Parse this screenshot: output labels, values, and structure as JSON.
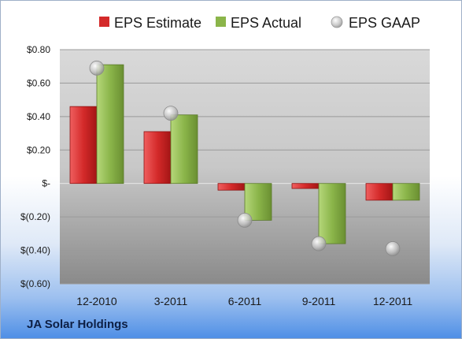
{
  "company": "JA Solar Holdings",
  "colors": {
    "estimate": "#d42a2a",
    "actual": "#8bb54a",
    "gaap": "#b8b8b8"
  },
  "chart_data": {
    "type": "bar",
    "categories": [
      "12-2010",
      "3-2011",
      "6-2011",
      "9-2011",
      "12-2011"
    ],
    "series": [
      {
        "name": "EPS Estimate",
        "values": [
          0.46,
          0.31,
          -0.04,
          -0.03,
          -0.1
        ]
      },
      {
        "name": "EPS Actual",
        "values": [
          0.71,
          0.41,
          -0.22,
          -0.36,
          -0.1
        ]
      },
      {
        "name": "EPS GAAP",
        "type": "scatter",
        "values": [
          0.69,
          0.42,
          -0.22,
          -0.36,
          -0.39
        ]
      }
    ],
    "yticks": [
      {
        "value": 0.8,
        "label": "$0.80"
      },
      {
        "value": 0.6,
        "label": "$0.60"
      },
      {
        "value": 0.4,
        "label": "$0.40"
      },
      {
        "value": 0.2,
        "label": "$0.20"
      },
      {
        "value": 0.0,
        "label": "$-"
      },
      {
        "value": -0.2,
        "label": "$(0.20)"
      },
      {
        "value": -0.4,
        "label": "$(0.40)"
      },
      {
        "value": -0.6,
        "label": "$(0.60)"
      }
    ],
    "ylim": [
      -0.6,
      0.8
    ],
    "grid": true,
    "legend": "top"
  }
}
